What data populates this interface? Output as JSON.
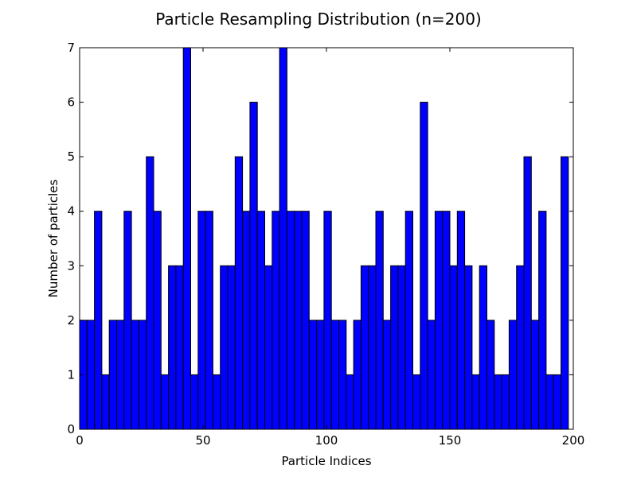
{
  "chart_data": {
    "type": "bar",
    "title": "Particle Resampling Distribution (n=200)",
    "xlabel": "Particle Indices",
    "ylabel": "Number of particles",
    "xlim": [
      0,
      200
    ],
    "ylim": [
      0,
      7
    ],
    "xticks": [
      0,
      50,
      100,
      150,
      200
    ],
    "yticks": [
      0,
      1,
      2,
      3,
      4,
      5,
      6,
      7
    ],
    "bin_width": 3,
    "bin_start": 0,
    "values": [
      2,
      2,
      4,
      1,
      2,
      2,
      4,
      2,
      2,
      5,
      4,
      1,
      3,
      3,
      7,
      1,
      4,
      4,
      1,
      3,
      3,
      5,
      4,
      6,
      4,
      3,
      4,
      7,
      4,
      4,
      4,
      2,
      2,
      4,
      2,
      2,
      1,
      2,
      3,
      3,
      4,
      2,
      3,
      3,
      4,
      1,
      6,
      2,
      4,
      4,
      3,
      4,
      3,
      1,
      3,
      2,
      1,
      1,
      2,
      3,
      5,
      2,
      4,
      1,
      1,
      5
    ],
    "bar_color": "#0000ff",
    "edge_color": "#000000",
    "grid": false
  }
}
